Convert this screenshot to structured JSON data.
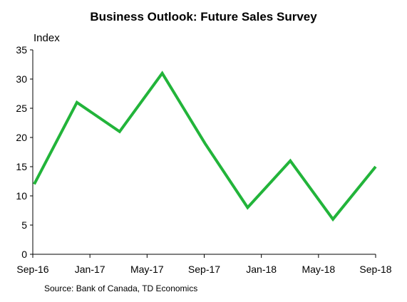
{
  "chart_data": {
    "type": "line",
    "title": "Business Outlook: Future Sales Survey",
    "ylabel": "Index",
    "xlabel": "",
    "source": "Source: Bank of Canada, TD Economics",
    "x": [
      "Sep-16",
      "Dec-16",
      "Mar-17",
      "Jun-17",
      "Sep-17",
      "Dec-17",
      "Mar-18",
      "Jun-18",
      "Sep-18"
    ],
    "x_tick_labels": [
      "Sep-16",
      "Jan-17",
      "May-17",
      "Sep-17",
      "Jan-18",
      "May-18",
      "Sep-18"
    ],
    "series": [
      {
        "values": [
          12,
          26,
          21,
          31,
          19,
          8,
          16,
          6,
          15
        ]
      }
    ],
    "ylim": [
      0,
      35
    ],
    "y_ticks": [
      0,
      5,
      10,
      15,
      20,
      25,
      30,
      35
    ],
    "grid": false,
    "legend": "none",
    "line_color": "#22b43a"
  }
}
